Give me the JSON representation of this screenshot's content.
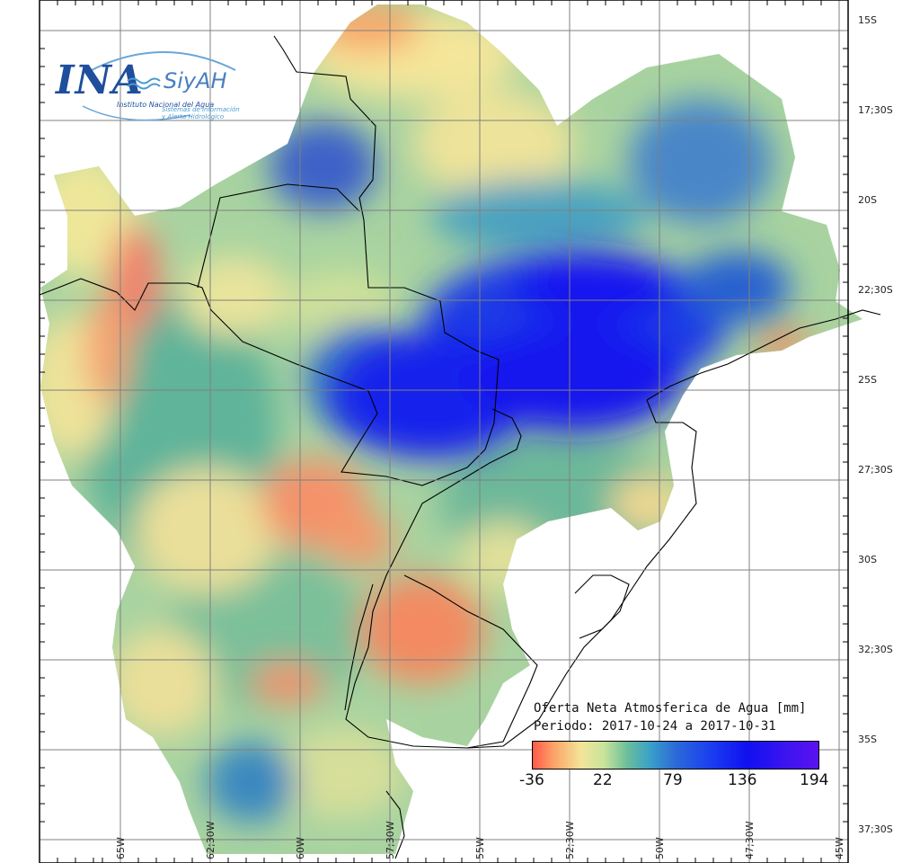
{
  "logo": {
    "agency": "INA",
    "brand": "SiyAH",
    "institute": "Instituto Nacional del Agua",
    "system_line1": "Sistemas de información",
    "system_line2": "y Alerta Hidrológico"
  },
  "legend": {
    "title": "Oferta Neta Atmosferica de Agua [mm]",
    "period": "Periodo: 2017-10-24 a 2017-10-31",
    "ticks": [
      "-36",
      "22",
      "79",
      "136",
      "194"
    ],
    "colors": {
      "low": "#ff5a4a",
      "mid_low": "#f3e59a",
      "mid": "#3aa0c8",
      "high": "#1010f0",
      "max": "#5b12f0"
    }
  },
  "grid": {
    "lat_labels": [
      "15S",
      "17;30S",
      "20S",
      "22;30S",
      "25S",
      "27;30S",
      "30S",
      "32;30S",
      "35S",
      "37;30S"
    ],
    "lon_labels": [
      "65W",
      "62;30W",
      "60W",
      "57;30W",
      "55W",
      "52;30W",
      "50W",
      "47;30W",
      "45W"
    ]
  }
}
